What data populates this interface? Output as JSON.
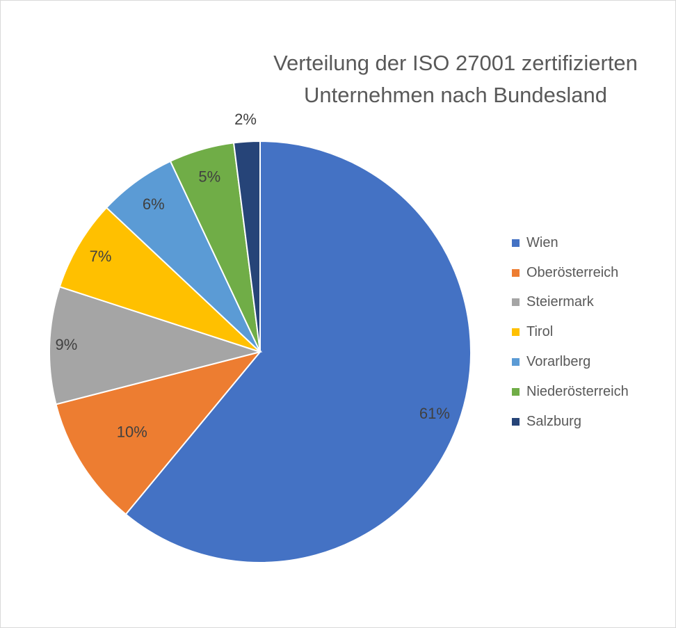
{
  "chart_data": {
    "type": "pie",
    "title_lines": [
      "Verteilung der ISO 27001 zertifizierten",
      "Unternehmen nach Bundesland"
    ],
    "categories": [
      "Wien",
      "Oberösterreich",
      "Steiermark",
      "Tirol",
      "Vorarlberg",
      "Niederösterreich",
      "Salzburg"
    ],
    "values": [
      61,
      10,
      9,
      7,
      6,
      5,
      2
    ],
    "labels": [
      "61%",
      "10%",
      "9%",
      "7%",
      "6%",
      "5%",
      "2%"
    ],
    "colors": [
      "#4472c4",
      "#ed7d31",
      "#a5a5a5",
      "#ffc000",
      "#5b9bd5",
      "#70ad47",
      "#264478"
    ],
    "legend_position": "right",
    "start_angle": "top",
    "direction": "clockwise"
  }
}
